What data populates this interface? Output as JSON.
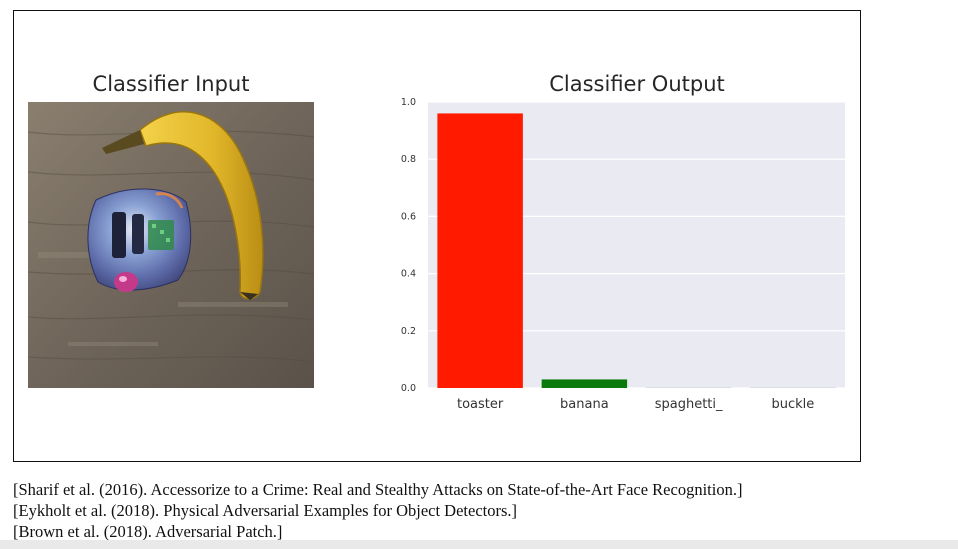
{
  "left_panel": {
    "title": "Classifier Input"
  },
  "chart_data": {
    "type": "bar",
    "title": "Classifier Output",
    "categories": [
      "toaster",
      "banana",
      "spaghetti_",
      "buckle"
    ],
    "values": [
      0.96,
      0.03,
      0.002,
      0.001
    ],
    "bar_colors": [
      "#ff1a00",
      "#0a7a0a",
      "#d0d0d8",
      "#d0d0d8"
    ],
    "ylim": [
      0,
      1.0
    ],
    "yticks": [
      "0.0",
      "0.2",
      "0.4",
      "0.6",
      "0.8",
      "1.0"
    ],
    "grid": true,
    "background_color": "#eaeaf2",
    "xlabel": "",
    "ylabel": ""
  },
  "references": [
    "[Sharif et al. (2016). Accessorize to a Crime: Real and Stealthy Attacks on State-of-the-Art Face Recognition.]",
    "[Eykholt et al. (2018). Physical Adversarial Examples for Object Detectors.]",
    "[Brown et al. (2018). Adversarial Patch.]"
  ]
}
